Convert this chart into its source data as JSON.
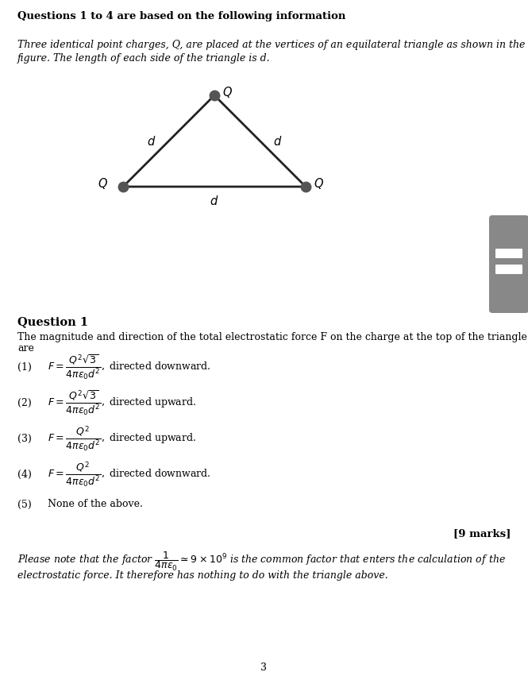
{
  "title_bold": "Questions 1 to 4 are based on the following information",
  "intro_line1": "Three identical point charges, Q, are placed at the vertices of an equilateral triangle as shown in the",
  "intro_line2": "figure. The length of each side of the triangle is d.",
  "q1_title": "Question 1",
  "q1_body_line1": "The magnitude and direction of the total electrostatic force F on the charge at the top of the triangle",
  "q1_body_line2": "are",
  "opt1_formula": "$F = \\dfrac{Q^2\\sqrt{3}}{4\\pi\\epsilon_0 d^2},$",
  "opt1_text": " directed downward.",
  "opt2_formula": "$F = \\dfrac{Q^2\\sqrt{3}}{4\\pi\\epsilon_0 d^2},$",
  "opt2_text": " directed upward.",
  "opt3_formula": "$F = \\dfrac{Q^2}{4\\pi\\epsilon_0 d^2},$",
  "opt3_text": " directed upward.",
  "opt4_formula": "$F = \\dfrac{Q^2}{4\\pi\\epsilon_0 d^2},$",
  "opt4_text": " directed downward.",
  "opt5_text": "None of the above.",
  "marks": "[9 marks]",
  "note_line1": "Please note that the factor $\\dfrac{1}{4\\pi\\varepsilon_0} \\simeq 9 \\times 10^9$ is the common factor that enters the calculation of the",
  "note_line2": "electrostatic force. It therefore has nothing to do with the triangle above.",
  "page_number": "3",
  "bg_color": "#ffffff",
  "text_color": "#000000",
  "dot_color": "#555555",
  "line_color": "#222222",
  "sidebar_color": "#888888"
}
